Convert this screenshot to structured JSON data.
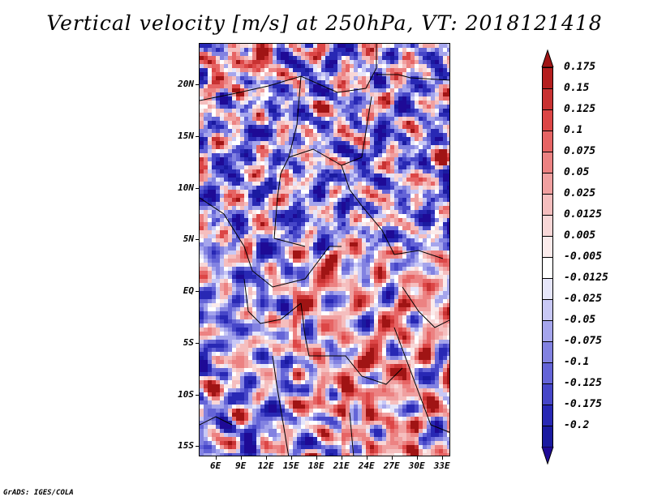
{
  "title": "Vertical velocity [m/s] at 250hPa, VT: 2018121418",
  "footer": "GrADS: IGES/COLA",
  "map": {
    "lat_range": [
      -16,
      24
    ],
    "lon_range": [
      4,
      34
    ],
    "lat_ticks": [
      {
        "value": 20,
        "label": "20N"
      },
      {
        "value": 15,
        "label": "15N"
      },
      {
        "value": 10,
        "label": "10N"
      },
      {
        "value": 5,
        "label": "5N"
      },
      {
        "value": 0,
        "label": "EQ"
      },
      {
        "value": -5,
        "label": "5S"
      },
      {
        "value": -10,
        "label": "10S"
      },
      {
        "value": -15,
        "label": "15S"
      }
    ],
    "lon_ticks": [
      {
        "value": 6,
        "label": "6E"
      },
      {
        "value": 9,
        "label": "9E"
      },
      {
        "value": 12,
        "label": "12E"
      },
      {
        "value": 15,
        "label": "15E"
      },
      {
        "value": 18,
        "label": "18E"
      },
      {
        "value": 21,
        "label": "21E"
      },
      {
        "value": 24,
        "label": "24E"
      },
      {
        "value": 27,
        "label": "27E"
      },
      {
        "value": 30,
        "label": "30E"
      },
      {
        "value": 33,
        "label": "33E"
      }
    ]
  },
  "colorbar": {
    "levels": [
      {
        "label": "0.175",
        "color": "#b41e1e"
      },
      {
        "label": "0.15",
        "color": "#c83232"
      },
      {
        "label": "0.125",
        "color": "#dc4646"
      },
      {
        "label": "0.1",
        "color": "#e66464"
      },
      {
        "label": "0.075",
        "color": "#ec8282"
      },
      {
        "label": "0.05",
        "color": "#f0a0a0"
      },
      {
        "label": "0.025",
        "color": "#f5bebe"
      },
      {
        "label": "0.0125",
        "color": "#f8d7d7"
      },
      {
        "label": "0.005",
        "color": "#fbebeb"
      },
      {
        "label": "-0.005",
        "color": "#ffffff"
      },
      {
        "label": "-0.0125",
        "color": "#e6e6fa"
      },
      {
        "label": "-0.025",
        "color": "#c8c8f5"
      },
      {
        "label": "-0.05",
        "color": "#a5a5ec"
      },
      {
        "label": "-0.075",
        "color": "#8282e1"
      },
      {
        "label": "-0.1",
        "color": "#6464d7"
      },
      {
        "label": "-0.125",
        "color": "#4646c8"
      },
      {
        "label": "-0.175",
        "color": "#2828b4"
      },
      {
        "label": "-0.2",
        "color": "#1a1aa0"
      }
    ],
    "top_arrow_color": "#a01414",
    "bottom_arrow_color": "#1e0a96"
  }
}
